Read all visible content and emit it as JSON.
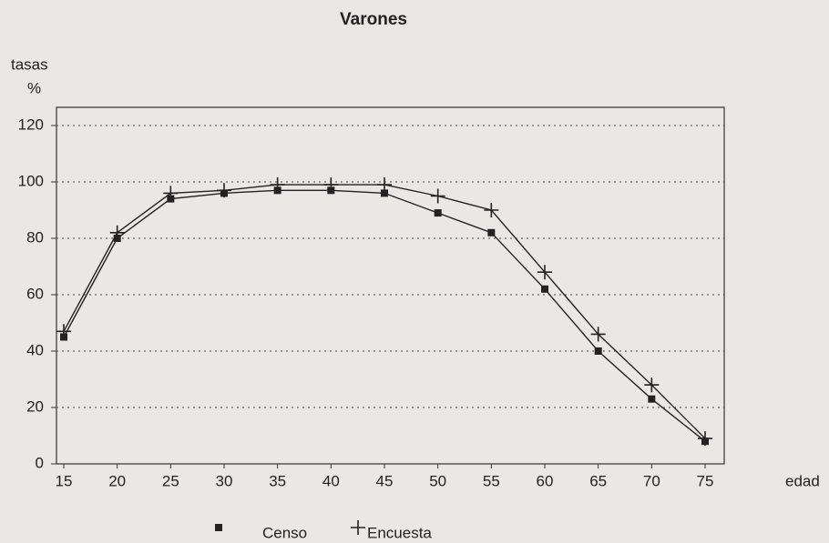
{
  "chart_data": {
    "type": "line",
    "title": "Varones",
    "y_label": "tasas",
    "y_unit": "%",
    "x_label": "edad",
    "x": [
      15,
      20,
      25,
      30,
      35,
      40,
      45,
      50,
      55,
      60,
      65,
      70,
      75
    ],
    "series": [
      {
        "name": "Censo",
        "color": "#222222",
        "marker": "square",
        "values": [
          45,
          80,
          94,
          96,
          97,
          97,
          96,
          89,
          82,
          62,
          40,
          23,
          8
        ]
      },
      {
        "name": "Encuesta",
        "color": "#222222",
        "marker": "plus",
        "values": [
          47,
          82,
          96,
          97,
          99,
          99,
          99,
          95,
          90,
          68,
          46,
          28,
          9
        ]
      }
    ],
    "xlim": [
      15,
      75
    ],
    "xticks": [
      15,
      20,
      25,
      30,
      35,
      40,
      45,
      50,
      55,
      60,
      65,
      70,
      75
    ],
    "ylim": [
      0,
      120
    ],
    "yticks": [
      0,
      20,
      40,
      60,
      80,
      100,
      120
    ],
    "grid": true,
    "legend": "bottom"
  }
}
